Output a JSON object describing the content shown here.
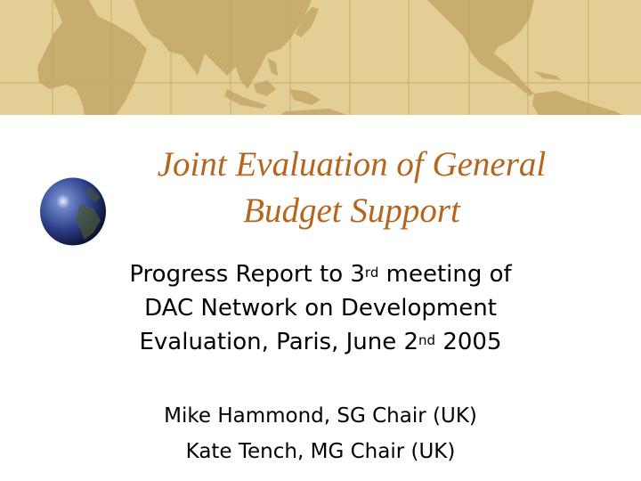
{
  "slide": {
    "title_line1": "Joint Evaluation of General",
    "title_line2": "Budget Support",
    "subtitle": {
      "line1_a": "Progress Report to 3",
      "line1_sup": "rd",
      "line1_b": " meeting of",
      "line2": "DAC Network on Development",
      "line3_a": "Evaluation, Paris, June 2",
      "line3_sup": "nd",
      "line3_b": " 2005"
    },
    "authors": [
      "Mike Hammond, SG Chair (UK)",
      "Kate Tench, MG Chair (UK)"
    ]
  },
  "colors": {
    "map_background": "#e3cf95",
    "map_land": "#c9ad6e",
    "title": "#b5651d",
    "text": "#000000"
  },
  "icons": {
    "header": "world-map-banner",
    "decoration": "globe-icon"
  }
}
